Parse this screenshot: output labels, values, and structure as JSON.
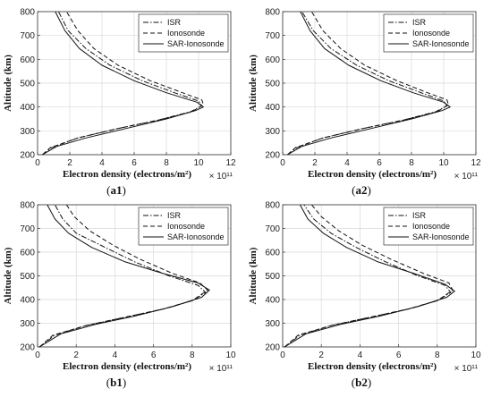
{
  "chart_data": [
    {
      "type": "line",
      "panel": "(a1)",
      "xlabel": "Electron density (electrons/m²)",
      "x_exponent": "× 10¹¹",
      "ylabel": "Altitude (km)",
      "xlim": [
        0,
        12
      ],
      "ylim": [
        200,
        800
      ],
      "xticks": [
        0,
        2,
        4,
        6,
        8,
        10,
        12
      ],
      "yticks": [
        200,
        300,
        400,
        500,
        600,
        700,
        800
      ],
      "grid": true,
      "legend_position": "top-right",
      "series": [
        {
          "name": "ISR",
          "style": "dashdot",
          "points": [
            [
              0.3,
              200
            ],
            [
              0.9,
              230
            ],
            [
              2.5,
              270
            ],
            [
              5.0,
              310
            ],
            [
              7.5,
              345
            ],
            [
              9.5,
              380
            ],
            [
              10.2,
              405
            ],
            [
              10.0,
              425
            ],
            [
              8.5,
              460
            ],
            [
              6.5,
              510
            ],
            [
              4.5,
              575
            ],
            [
              3.0,
              645
            ],
            [
              1.9,
              720
            ],
            [
              1.3,
              800
            ]
          ]
        },
        {
          "name": "Ionosonde",
          "style": "dashed",
          "points": [
            [
              0.3,
              200
            ],
            [
              0.8,
              230
            ],
            [
              2.5,
              270
            ],
            [
              5.0,
              310
            ],
            [
              7.5,
              345
            ],
            [
              9.6,
              380
            ],
            [
              10.3,
              410
            ],
            [
              10.2,
              430
            ],
            [
              9.0,
              460
            ],
            [
              7.0,
              510
            ],
            [
              5.0,
              575
            ],
            [
              3.5,
              645
            ],
            [
              2.5,
              720
            ],
            [
              1.8,
              800
            ]
          ]
        },
        {
          "name": "SAR-Ionosonde",
          "style": "solid",
          "points": [
            [
              0.3,
              200
            ],
            [
              1.2,
              235
            ],
            [
              3.0,
              270
            ],
            [
              5.5,
              310
            ],
            [
              8.0,
              350
            ],
            [
              9.8,
              385
            ],
            [
              10.3,
              400
            ],
            [
              9.9,
              420
            ],
            [
              8.0,
              460
            ],
            [
              6.0,
              510
            ],
            [
              4.0,
              575
            ],
            [
              2.6,
              645
            ],
            [
              1.7,
              720
            ],
            [
              1.1,
              800
            ]
          ]
        }
      ]
    },
    {
      "type": "line",
      "panel": "(a2)",
      "xlabel": "Electron density (electrons/m²)",
      "x_exponent": "× 10¹¹",
      "ylabel": "Altitude (km)",
      "xlim": [
        0,
        12
      ],
      "ylim": [
        200,
        800
      ],
      "xticks": [
        0,
        2,
        4,
        6,
        8,
        10,
        12
      ],
      "yticks": [
        200,
        300,
        400,
        500,
        600,
        700,
        800
      ],
      "grid": true,
      "legend_position": "top-right",
      "series": [
        {
          "name": "ISR",
          "style": "dashdot",
          "points": [
            [
              0.3,
              200
            ],
            [
              0.9,
              230
            ],
            [
              2.5,
              270
            ],
            [
              5.0,
              310
            ],
            [
              7.5,
              345
            ],
            [
              9.5,
              380
            ],
            [
              10.2,
              405
            ],
            [
              10.0,
              425
            ],
            [
              8.6,
              460
            ],
            [
              6.6,
              510
            ],
            [
              4.6,
              575
            ],
            [
              3.0,
              645
            ],
            [
              1.9,
              720
            ],
            [
              1.2,
              800
            ]
          ]
        },
        {
          "name": "Ionosonde",
          "style": "dashed",
          "points": [
            [
              0.3,
              200
            ],
            [
              0.8,
              230
            ],
            [
              2.5,
              270
            ],
            [
              5.0,
              310
            ],
            [
              7.5,
              345
            ],
            [
              9.6,
              380
            ],
            [
              10.3,
              410
            ],
            [
              10.2,
              430
            ],
            [
              9.0,
              460
            ],
            [
              7.1,
              510
            ],
            [
              5.1,
              575
            ],
            [
              3.6,
              645
            ],
            [
              2.5,
              720
            ],
            [
              1.8,
              800
            ]
          ]
        },
        {
          "name": "SAR-Ionosonde",
          "style": "solid",
          "points": [
            [
              0.3,
              200
            ],
            [
              1.2,
              235
            ],
            [
              3.0,
              270
            ],
            [
              5.5,
              310
            ],
            [
              8.0,
              350
            ],
            [
              9.9,
              385
            ],
            [
              10.4,
              400
            ],
            [
              10.0,
              420
            ],
            [
              8.1,
              460
            ],
            [
              6.1,
              510
            ],
            [
              4.1,
              575
            ],
            [
              2.6,
              645
            ],
            [
              1.7,
              720
            ],
            [
              1.1,
              800
            ]
          ]
        }
      ]
    },
    {
      "type": "line",
      "panel": "(b1)",
      "xlabel": "Electron density (electrons/m²)",
      "x_exponent": "× 10¹¹",
      "ylabel": "Altitude (km)",
      "xlim": [
        0,
        10
      ],
      "ylim": [
        200,
        800
      ],
      "xticks": [
        0,
        2,
        4,
        6,
        8,
        10
      ],
      "yticks": [
        200,
        300,
        400,
        500,
        600,
        700,
        800
      ],
      "grid": true,
      "legend_position": "top-right",
      "series": [
        {
          "name": "ISR",
          "style": "dashdot",
          "points": [
            [
              0.1,
              200
            ],
            [
              0.9,
              250
            ],
            [
              2.5,
              290
            ],
            [
              4.5,
              325
            ],
            [
              6.5,
              360
            ],
            [
              8.0,
              395
            ],
            [
              8.7,
              430
            ],
            [
              8.3,
              460
            ],
            [
              6.8,
              500
            ],
            [
              5.0,
              560
            ],
            [
              3.5,
              620
            ],
            [
              2.0,
              680
            ],
            [
              1.3,
              740
            ],
            [
              0.9,
              800
            ]
          ]
        },
        {
          "name": "Ionosonde",
          "style": "dashed",
          "points": [
            [
              0.1,
              200
            ],
            [
              0.8,
              250
            ],
            [
              2.5,
              290
            ],
            [
              4.5,
              325
            ],
            [
              6.5,
              360
            ],
            [
              8.0,
              395
            ],
            [
              8.8,
              440
            ],
            [
              8.4,
              470
            ],
            [
              7.0,
              510
            ],
            [
              5.3,
              570
            ],
            [
              3.9,
              630
            ],
            [
              2.7,
              690
            ],
            [
              1.9,
              750
            ],
            [
              1.5,
              800
            ]
          ]
        },
        {
          "name": "SAR-Ionosonde",
          "style": "solid",
          "points": [
            [
              0.1,
              200
            ],
            [
              1.2,
              255
            ],
            [
              3.0,
              295
            ],
            [
              5.0,
              330
            ],
            [
              7.0,
              370
            ],
            [
              8.5,
              410
            ],
            [
              8.9,
              440
            ],
            [
              8.3,
              470
            ],
            [
              6.5,
              510
            ],
            [
              4.5,
              560
            ],
            [
              2.8,
              620
            ],
            [
              1.6,
              680
            ],
            [
              0.9,
              740
            ],
            [
              0.5,
              800
            ]
          ]
        }
      ]
    },
    {
      "type": "line",
      "panel": "(b2)",
      "xlabel": "Electron density (electrons/m²)",
      "x_exponent": "× 10¹¹",
      "ylabel": "Altitude (km)",
      "xlim": [
        0,
        10
      ],
      "ylim": [
        200,
        800
      ],
      "xticks": [
        0,
        2,
        4,
        6,
        8,
        10
      ],
      "yticks": [
        200,
        300,
        400,
        500,
        600,
        700,
        800
      ],
      "grid": true,
      "legend_position": "top-right",
      "series": [
        {
          "name": "ISR",
          "style": "dashdot",
          "points": [
            [
              0.1,
              200
            ],
            [
              0.9,
              250
            ],
            [
              2.5,
              290
            ],
            [
              4.5,
              325
            ],
            [
              6.5,
              360
            ],
            [
              8.0,
              395
            ],
            [
              8.7,
              430
            ],
            [
              8.4,
              460
            ],
            [
              7.0,
              500
            ],
            [
              5.3,
              560
            ],
            [
              3.8,
              620
            ],
            [
              2.5,
              680
            ],
            [
              1.6,
              740
            ],
            [
              1.1,
              800
            ]
          ]
        },
        {
          "name": "Ionosonde",
          "style": "dashed",
          "points": [
            [
              0.1,
              200
            ],
            [
              0.8,
              250
            ],
            [
              2.5,
              290
            ],
            [
              4.5,
              325
            ],
            [
              6.5,
              360
            ],
            [
              8.0,
              395
            ],
            [
              8.8,
              440
            ],
            [
              8.6,
              470
            ],
            [
              7.3,
              510
            ],
            [
              5.6,
              570
            ],
            [
              4.1,
              630
            ],
            [
              2.9,
              690
            ],
            [
              2.0,
              750
            ],
            [
              1.5,
              800
            ]
          ]
        },
        {
          "name": "SAR-Ionosonde",
          "style": "solid",
          "points": [
            [
              0.1,
              200
            ],
            [
              1.2,
              255
            ],
            [
              3.0,
              295
            ],
            [
              5.0,
              330
            ],
            [
              7.0,
              370
            ],
            [
              8.5,
              410
            ],
            [
              8.9,
              435
            ],
            [
              8.4,
              465
            ],
            [
              6.8,
              510
            ],
            [
              4.9,
              560
            ],
            [
              3.3,
              620
            ],
            [
              2.1,
              680
            ],
            [
              1.3,
              740
            ],
            [
              0.9,
              800
            ]
          ]
        }
      ]
    }
  ]
}
